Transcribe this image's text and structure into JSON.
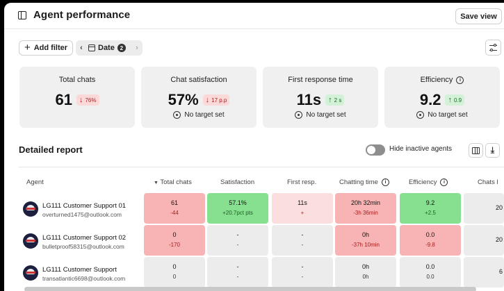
{
  "header": {
    "title": "Agent performance",
    "save_label": "Save view"
  },
  "filters": {
    "add_label": "Add filter",
    "date_label": "Date",
    "date_count": "2"
  },
  "cards": [
    {
      "title": "Total chats",
      "value": "61",
      "delta": "76%",
      "direction": "down",
      "target": ""
    },
    {
      "title": "Chat satisfaction",
      "value": "57%",
      "delta": "17 p.p",
      "direction": "down",
      "target": "No target set"
    },
    {
      "title": "First response time",
      "value": "11s",
      "delta": "2 s",
      "direction": "up",
      "target": "No target set"
    },
    {
      "title": "Efficiency",
      "value": "9.2",
      "delta": "0.9",
      "direction": "up",
      "target": "No target set"
    }
  ],
  "report": {
    "title": "Detailed report",
    "toggle_label": "Hide inactive agents",
    "columns": [
      "Agent",
      "Total chats",
      "Satisfaction",
      "First resp.",
      "Chatting time",
      "Efficiency",
      "Chats l"
    ],
    "rows": [
      {
        "name": "LG111 Customer Support 01",
        "email": "overturned1475@outlook.com",
        "cells": [
          {
            "value": "61",
            "delta": "-44",
            "tone": "red"
          },
          {
            "value": "57.1%",
            "delta": "+20.7pct pts",
            "tone": "green"
          },
          {
            "value": "11s",
            "delta": "+",
            "tone": "lred"
          },
          {
            "value": "20h 32min",
            "delta": "-3h 36min",
            "tone": "red"
          },
          {
            "value": "9.2",
            "delta": "+2.5",
            "tone": "green"
          },
          {
            "value": "20",
            "delta": "",
            "tone": "grey"
          }
        ]
      },
      {
        "name": "LG111 Customer Support 02",
        "email": "bulletproof58315@outlook.com",
        "cells": [
          {
            "value": "0",
            "delta": "-170",
            "tone": "red"
          },
          {
            "value": "-",
            "delta": "-",
            "tone": "grey"
          },
          {
            "value": "-",
            "delta": "-",
            "tone": "grey"
          },
          {
            "value": "0h",
            "delta": "-37h 10min",
            "tone": "red"
          },
          {
            "value": "0.0",
            "delta": "-9.8",
            "tone": "red"
          },
          {
            "value": "20",
            "delta": "",
            "tone": "grey"
          }
        ]
      },
      {
        "name": "LG111 Customer Support",
        "email": "transatlantic6698@outlook.com",
        "cells": [
          {
            "value": "0",
            "delta": "0",
            "tone": "grey"
          },
          {
            "value": "-",
            "delta": "-",
            "tone": "grey"
          },
          {
            "value": "-",
            "delta": "-",
            "tone": "grey"
          },
          {
            "value": "0h",
            "delta": "0h",
            "tone": "grey"
          },
          {
            "value": "0.0",
            "delta": "0.0",
            "tone": "grey"
          },
          {
            "value": "6",
            "delta": "",
            "tone": "grey"
          }
        ]
      }
    ]
  }
}
